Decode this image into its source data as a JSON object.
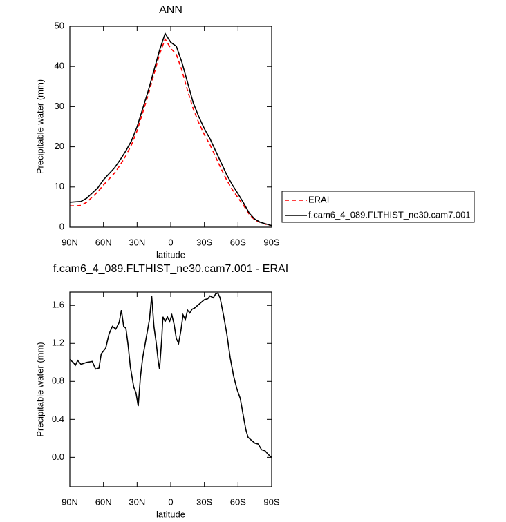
{
  "chart_data": [
    {
      "type": "line",
      "title": "ANN",
      "x_label": "latitude",
      "y_label": "Precipitable water (mm)",
      "x": [
        90,
        85,
        80,
        75,
        70,
        65,
        60,
        55,
        50,
        45,
        40,
        35,
        30,
        25,
        20,
        15,
        10,
        5,
        0,
        -5,
        -10,
        -15,
        -20,
        -25,
        -30,
        -35,
        -40,
        -45,
        -50,
        -55,
        -60,
        -65,
        -70,
        -75,
        -80,
        -85,
        -90
      ],
      "series": [
        {
          "name": "ERAI",
          "color": "#ff0000",
          "dash": true,
          "values": [
            5.3,
            5.3,
            5.4,
            6.2,
            7.5,
            8.8,
            10.5,
            12,
            13.5,
            15.5,
            17.8,
            20.5,
            24,
            28.5,
            33,
            38,
            43,
            46.8,
            44.5,
            43,
            39,
            34,
            29.5,
            26,
            23,
            20.5,
            17.5,
            14.5,
            11.7,
            9.3,
            7.3,
            5.4,
            3.2,
            1.8,
            1.1,
            0.7,
            0.35
          ]
        },
        {
          "name": "f.cam6_4_089.FLTHIST_ne30.cam7.001",
          "color": "#000000",
          "dash": false,
          "values": [
            6.2,
            6.3,
            6.4,
            7.2,
            8.5,
            9.8,
            11.8,
            13.3,
            14.8,
            16.8,
            19,
            21.5,
            25,
            29.5,
            34,
            39,
            44,
            48.2,
            46,
            45,
            41,
            36,
            31,
            27.5,
            24.5,
            22,
            19,
            16,
            13,
            10.5,
            8.3,
            6,
            3.5,
            2,
            1.2,
            0.8,
            0.4
          ]
        }
      ],
      "xlim": [
        90,
        -90
      ],
      "xticks": [
        {
          "value": 90,
          "label": "90N"
        },
        {
          "value": 60,
          "label": "60N"
        },
        {
          "value": 30,
          "label": "30N"
        },
        0,
        {
          "value": -30,
          "label": "30S"
        },
        {
          "value": -60,
          "label": "60S"
        },
        {
          "value": -90,
          "label": "90S"
        }
      ],
      "ylim": [
        0,
        50
      ],
      "yticks": [
        0,
        10,
        20,
        30,
        40,
        50
      ]
    },
    {
      "type": "line",
      "title": "f.cam6_4_089.FLTHIST_ne30.cam7.001 - ERAI",
      "x_label": "latitude",
      "y_label": "Precipitable water (mm)",
      "x": [
        90,
        87,
        85,
        83,
        80,
        75,
        70,
        67,
        64,
        62,
        58,
        55,
        52,
        49,
        46,
        44,
        42,
        40,
        38,
        36,
        33,
        31,
        29,
        27,
        25,
        22,
        19,
        17,
        15,
        13,
        11,
        10,
        8,
        7,
        5,
        3,
        1,
        -1,
        -3,
        -5,
        -7,
        -9,
        -11,
        -13,
        -15,
        -17,
        -19,
        -21,
        -24,
        -27,
        -30,
        -33,
        -35,
        -38,
        -40,
        -42,
        -44,
        -47,
        -50,
        -53,
        -56,
        -59,
        -62,
        -65,
        -67,
        -69,
        -72,
        -75,
        -78,
        -81,
        -84,
        -87,
        -90
      ],
      "values": [
        1.03,
        1.0,
        0.97,
        1.02,
        0.98,
        1.0,
        1.01,
        0.93,
        0.94,
        1.09,
        1.15,
        1.3,
        1.38,
        1.35,
        1.42,
        1.55,
        1.38,
        1.36,
        1.18,
        0.95,
        0.74,
        0.68,
        0.54,
        0.85,
        1.05,
        1.25,
        1.45,
        1.7,
        1.38,
        1.21,
        1.0,
        0.93,
        1.25,
        1.48,
        1.43,
        1.48,
        1.43,
        1.5,
        1.4,
        1.25,
        1.2,
        1.33,
        1.5,
        1.45,
        1.55,
        1.52,
        1.56,
        1.57,
        1.6,
        1.63,
        1.66,
        1.67,
        1.7,
        1.68,
        1.72,
        1.73,
        1.68,
        1.5,
        1.3,
        1.05,
        0.86,
        0.72,
        0.62,
        0.42,
        0.29,
        0.21,
        0.18,
        0.15,
        0.14,
        0.08,
        0.07,
        0.03,
        0.0
      ],
      "color": "#000000",
      "xlim": [
        90,
        -90
      ],
      "xticks": [
        {
          "value": 90,
          "label": "90N"
        },
        {
          "value": 60,
          "label": "60N"
        },
        {
          "value": 30,
          "label": "30N"
        },
        0,
        {
          "value": -30,
          "label": "30S"
        },
        {
          "value": -60,
          "label": "60S"
        },
        {
          "value": -90,
          "label": "90S"
        }
      ],
      "ylim": [
        -0.31,
        1.74
      ],
      "yticks": [
        {
          "value": 0,
          "label": "0.0"
        },
        0.4,
        0.8,
        1.2,
        1.6
      ]
    }
  ]
}
